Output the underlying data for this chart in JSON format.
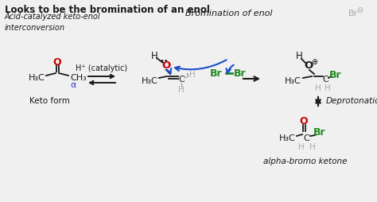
{
  "bg_color": "#f0f0f0",
  "title": "Looks to be the bromination of an enol",
  "subtitle": "Acid-catalyzed keto-enol\ninterconversion",
  "bromination_label": "Bromination of enol",
  "keto_label": "Keto form",
  "deprotonation_label": "Deprotonation",
  "alpha_bromo_label": "alpha-bromo ketone",
  "h_catalytic": "H⁺ (catalytic)",
  "text_color": "#1a1a1a",
  "red_color": "#cc0000",
  "blue_color": "#1a4fcc",
  "green_color": "#228B22",
  "gray_color": "#aaaaaa",
  "alpha_color": "#3333cc"
}
